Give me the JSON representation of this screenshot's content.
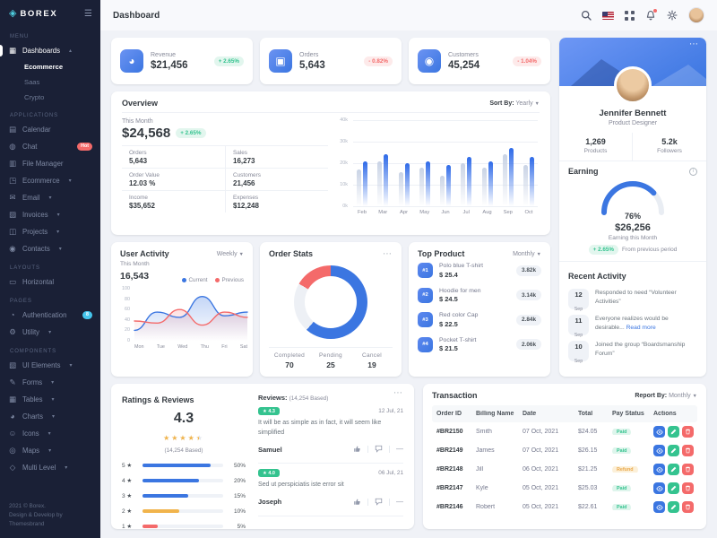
{
  "brand": {
    "name": "BOREX"
  },
  "topbar": {
    "title": "Dashboard"
  },
  "sidebar": {
    "rows": [
      {
        "cls": "section",
        "label": "MENU",
        "inter": "false"
      },
      {
        "cls": "item active",
        "icon": "dashboard-icon",
        "glyph": "▦",
        "label": "Dashboards",
        "chevron": "▴",
        "inter": "true"
      },
      {
        "cls": "sub active",
        "label": "Ecommerce",
        "inter": "true"
      },
      {
        "cls": "sub",
        "label": "Saas",
        "inter": "true"
      },
      {
        "cls": "sub",
        "label": "Crypto",
        "inter": "true"
      },
      {
        "cls": "section",
        "label": "APPLICATIONS",
        "inter": "false"
      },
      {
        "cls": "item",
        "icon": "calendar-icon",
        "glyph": "▤",
        "label": "Calendar",
        "inter": "true"
      },
      {
        "cls": "item",
        "icon": "chat-icon",
        "glyph": "◍",
        "label": "Chat",
        "badge": "Hot",
        "badgecls": "badge-hot",
        "inter": "true"
      },
      {
        "cls": "item",
        "icon": "file-manager-icon",
        "glyph": "▥",
        "label": "File Manager",
        "inter": "true"
      },
      {
        "cls": "item",
        "icon": "ecommerce-icon",
        "glyph": "◳",
        "label": "Ecommerce",
        "chevron": "▾",
        "inter": "true"
      },
      {
        "cls": "item",
        "icon": "email-icon",
        "glyph": "✉",
        "label": "Email",
        "chevron": "▾",
        "inter": "true"
      },
      {
        "cls": "item",
        "icon": "invoices-icon",
        "glyph": "▨",
        "label": "Invoices",
        "chevron": "▾",
        "inter": "true"
      },
      {
        "cls": "item",
        "icon": "projects-icon",
        "glyph": "◫",
        "label": "Projects",
        "chevron": "▾",
        "inter": "true"
      },
      {
        "cls": "item",
        "icon": "contacts-icon",
        "glyph": "◉",
        "label": "Contacts",
        "chevron": "▾",
        "inter": "true"
      },
      {
        "cls": "section",
        "label": "LAYOUTS",
        "inter": "false"
      },
      {
        "cls": "item",
        "icon": "horizontal-icon",
        "glyph": "▭",
        "label": "Horizontal",
        "inter": "true"
      },
      {
        "cls": "section",
        "label": "PAGES",
        "inter": "false"
      },
      {
        "cls": "item",
        "icon": "authentication-icon",
        "glyph": "◔",
        "label": "Authentication",
        "badge": "8",
        "badgecls": "badge-info",
        "inter": "true"
      },
      {
        "cls": "item",
        "icon": "utility-icon",
        "glyph": "⚙",
        "label": "Utility",
        "chevron": "▾",
        "inter": "true"
      },
      {
        "cls": "section",
        "label": "COMPONENTS",
        "inter": "false"
      },
      {
        "cls": "item",
        "icon": "ui-elements-icon",
        "glyph": "▧",
        "label": "UI Elements",
        "chevron": "▾",
        "inter": "true"
      },
      {
        "cls": "item",
        "icon": "forms-icon",
        "glyph": "✎",
        "label": "Forms",
        "chevron": "▾",
        "inter": "true"
      },
      {
        "cls": "item",
        "icon": "tables-icon",
        "glyph": "▦",
        "label": "Tables",
        "chevron": "▾",
        "inter": "true"
      },
      {
        "cls": "item",
        "icon": "charts-icon",
        "glyph": "◕",
        "label": "Charts",
        "chevron": "▾",
        "inter": "true"
      },
      {
        "cls": "item",
        "icon": "icons-icon",
        "glyph": "☺",
        "label": "Icons",
        "chevron": "▾",
        "inter": "true"
      },
      {
        "cls": "item",
        "icon": "maps-icon",
        "glyph": "◎",
        "label": "Maps",
        "chevron": "▾",
        "inter": "true"
      },
      {
        "cls": "item",
        "icon": "multi-level-icon",
        "glyph": "◇",
        "label": "Multi Level",
        "chevron": "▾",
        "inter": "true"
      }
    ],
    "footer": {
      "line1": "2021 © Borex.",
      "line2": "Design & Develop by",
      "line3": "Themesbrand"
    }
  },
  "stats": [
    {
      "label": "Revenue",
      "value": "$21,456",
      "delta": "+ 2.65%",
      "deltacls": "delta-up",
      "icon": "revenue-pie-icon",
      "glyph": "◕"
    },
    {
      "label": "Orders",
      "value": "5,643",
      "delta": "- 0.82%",
      "deltacls": "delta-down",
      "icon": "orders-box-icon",
      "glyph": "▣"
    },
    {
      "label": "Customers",
      "value": "45,254",
      "delta": "- 1.04%",
      "deltacls": "delta-down",
      "icon": "customers-icon",
      "glyph": "◉"
    }
  ],
  "overview": {
    "title": "Overview",
    "sort_label": "Sort By:",
    "sort_value": "Yearly",
    "month_label": "This Month",
    "month_value": "$24,568",
    "delta": "+ 2.65%",
    "stats": [
      {
        "label": "Orders",
        "value": "5,643"
      },
      {
        "label": "Sales",
        "value": "16,273"
      },
      {
        "label": "Order Value",
        "value": "12.03 %"
      },
      {
        "label": "Customers",
        "value": "21,456"
      },
      {
        "label": "Income",
        "value": "$35,652"
      },
      {
        "label": "Expenses",
        "value": "$12,248"
      }
    ]
  },
  "user_activity": {
    "title": "User Activity",
    "filter": "Weekly",
    "month_label": "This Month",
    "month_value": "16,543",
    "legend": [
      "Current",
      "Previous"
    ]
  },
  "order_stats": {
    "title": "Order Stats"
  },
  "top_product": {
    "title": "Top Product",
    "filter": "Monthly",
    "items": [
      {
        "rank": "#1",
        "name": "Polo blue T-shirt",
        "price": "$ 25.4",
        "amount": "3.82k"
      },
      {
        "rank": "#2",
        "name": "Hoodie for men",
        "price": "$ 24.5",
        "amount": "3.14k"
      },
      {
        "rank": "#3",
        "name": "Red color Cap",
        "price": "$ 22.5",
        "amount": "2.84k"
      },
      {
        "rank": "#4",
        "name": "Pocket T-shirt",
        "price": "$ 21.5",
        "amount": "2.06k"
      }
    ]
  },
  "profile": {
    "name": "Jennifer Bennett",
    "role": "Product Designer",
    "stats": [
      {
        "value": "1,269",
        "label": "Products"
      },
      {
        "value": "5.2k",
        "label": "Followers"
      }
    ]
  },
  "earning": {
    "title": "Earning",
    "value": "$26,256",
    "caption": "Earning this Month",
    "delta": "+ 2.65%",
    "note": "From previous period"
  },
  "recent_activity": {
    "title": "Recent Activity",
    "items": [
      {
        "day": "12",
        "mon": "Sep",
        "text": "Responded to need “Volunteer Activities”",
        "link": ""
      },
      {
        "day": "11",
        "mon": "Sep",
        "text": "Everyone realizes would be desirable... ",
        "link": "Read more"
      },
      {
        "day": "10",
        "mon": "Sep",
        "text": "Joined the group “Boardsmanship Forum”",
        "link": ""
      }
    ]
  },
  "ratings": {
    "title": "Ratings & Reviews",
    "score": "4.3",
    "stars": "★★★★★",
    "stars_fill": 86,
    "based": "(14,254 Based)"
  },
  "reviews": {
    "label": "Reviews:",
    "based": "(14,254 Based)",
    "items": [
      {
        "score": "★ 4.3",
        "date": "12 Jul, 21",
        "text": "It will be as simple as in fact, it will seem like simplified",
        "author": "Samuel"
      },
      {
        "score": "★ 4.0",
        "date": "06 Jul, 21",
        "text": "Sed ut perspiciatis iste error sit",
        "author": "Joseph"
      }
    ]
  },
  "transaction": {
    "title": "Transaction",
    "report_label": "Report By:",
    "report_value": "Monthly",
    "columns": [
      "Order ID",
      "Billing Name",
      "Date",
      "Total",
      "Pay Status",
      "Actions"
    ],
    "rows": [
      {
        "id": "#BR2150",
        "name": "Smith",
        "date": "07 Oct, 2021",
        "total": "$24.05",
        "status": "Paid",
        "statuscls": "st-paid"
      },
      {
        "id": "#BR2149",
        "name": "James",
        "date": "07 Oct, 2021",
        "total": "$26.15",
        "status": "Paid",
        "statuscls": "st-paid"
      },
      {
        "id": "#BR2148",
        "name": "Jill",
        "date": "06 Oct, 2021",
        "total": "$21.25",
        "status": "Refund",
        "statuscls": "st-refund"
      },
      {
        "id": "#BR2147",
        "name": "Kyle",
        "date": "05 Oct, 2021",
        "total": "$25.03",
        "status": "Paid",
        "statuscls": "st-paid"
      },
      {
        "id": "#BR2146",
        "name": "Robert",
        "date": "05 Oct, 2021",
        "total": "$22.61",
        "status": "Paid",
        "statuscls": "st-paid"
      }
    ]
  },
  "chart_data": [
    {
      "id": "overview",
      "type": "bar",
      "title": "Overview monthly revenue",
      "categories": [
        "Feb",
        "Mar",
        "Apr",
        "May",
        "Jun",
        "Jul",
        "Aug",
        "Sep",
        "Oct"
      ],
      "series": [
        {
          "name": "Previous",
          "values": [
            17,
            21,
            16,
            18,
            14,
            20,
            18,
            24,
            19
          ]
        },
        {
          "name": "Current",
          "values": [
            21,
            24,
            20,
            21,
            19,
            23,
            21,
            27,
            23
          ]
        }
      ],
      "yticks": [
        "0k",
        "10k",
        "20k",
        "30k",
        "40k"
      ],
      "ylim": [
        0,
        40
      ],
      "colors": {
        "Current": "#3b76e1",
        "Previous": "#c9d3e5"
      },
      "legend_position": "none",
      "grid": true
    },
    {
      "id": "user_activity",
      "type": "line",
      "title": "User Activity",
      "x": [
        "Mon",
        "Tue",
        "Wed",
        "Thu",
        "Fri",
        "Sat"
      ],
      "series": [
        {
          "name": "Current",
          "values": [
            20,
            55,
            45,
            85,
            48,
            55
          ],
          "color": "#3b76e1"
        },
        {
          "name": "Previous",
          "values": [
            38,
            34,
            60,
            30,
            55,
            45
          ],
          "color": "#f46a6a"
        }
      ],
      "yticks": [
        0,
        20,
        40,
        60,
        80,
        100
      ],
      "ylim": [
        0,
        100
      ],
      "legend_position": "top-right",
      "grid": false
    },
    {
      "id": "order_stats",
      "type": "donut",
      "title": "Order Stats",
      "labels": [
        "Completed",
        "Pending",
        "Cancel"
      ],
      "values": [
        70,
        25,
        19
      ],
      "colors": [
        "#3b76e1",
        "#edf0f5",
        "#f46a6a"
      ]
    },
    {
      "id": "earning_gauge",
      "type": "gauge",
      "title": "Earning gauge",
      "value": 76,
      "label": "76%",
      "color": "#3b76e1",
      "track": "#e9edf3"
    },
    {
      "id": "ratings",
      "type": "hbar",
      "title": "Ratings distribution",
      "rows": [
        {
          "label": "5 ★",
          "pct": "50%",
          "fill": 84,
          "color": "#3b76e1"
        },
        {
          "label": "4 ★",
          "pct": "20%",
          "fill": 70,
          "color": "#3b76e1"
        },
        {
          "label": "3 ★",
          "pct": "15%",
          "fill": 57,
          "color": "#3b76e1"
        },
        {
          "label": "2 ★",
          "pct": "10%",
          "fill": 46,
          "color": "#f1b44c"
        },
        {
          "label": "1 ★",
          "pct": "5%",
          "fill": 19,
          "color": "#f46a6a"
        }
      ]
    }
  ]
}
